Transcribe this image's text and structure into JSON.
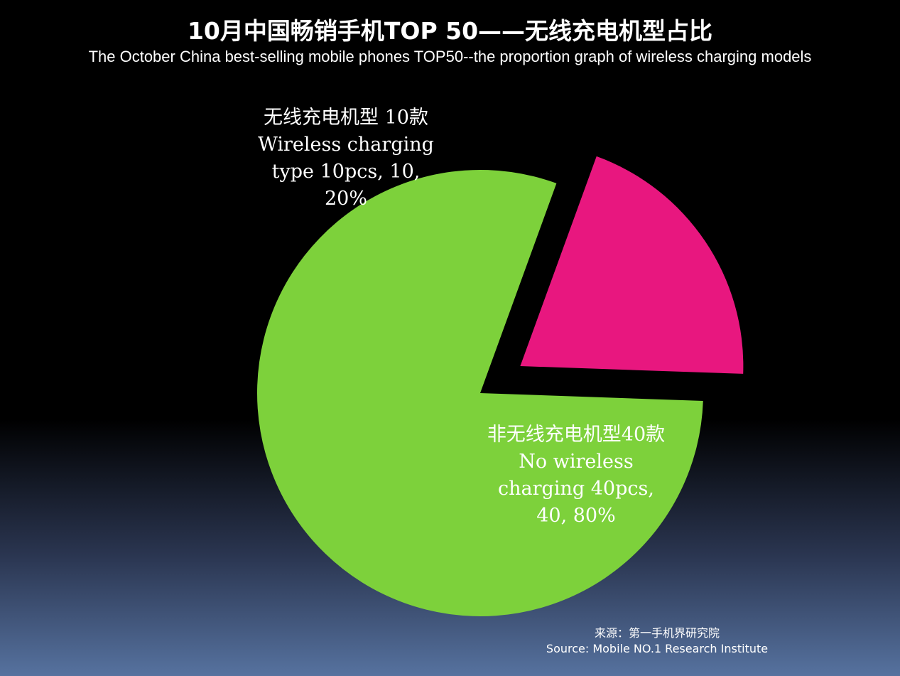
{
  "header": {
    "title": "10月中国畅销手机TOP 50——无线充电机型占比",
    "subtitle": "The October China best-selling mobile phones TOP50--the proportion graph of wireless charging models"
  },
  "chart_data": {
    "type": "pie",
    "exploded_slice": 0,
    "slices": [
      {
        "label": "无线充电机型 10款 Wireless charging type 10pcs",
        "value": 10,
        "percent": 20,
        "color": "#e8177f",
        "data_label": "无线充电机型 10款 Wireless charging type 10pcs, 10, 20%"
      },
      {
        "label": "非无线充电机型40款 No wireless charging 40pcs",
        "value": 40,
        "percent": 80,
        "color": "#7dd13b",
        "data_label": "非无线充电机型40款 No wireless charging 40pcs, 40, 80%"
      }
    ]
  },
  "footer": {
    "source_cn": "来源：第一手机界研究院",
    "source_en": "Source: Mobile NO.1 Research Institute"
  }
}
